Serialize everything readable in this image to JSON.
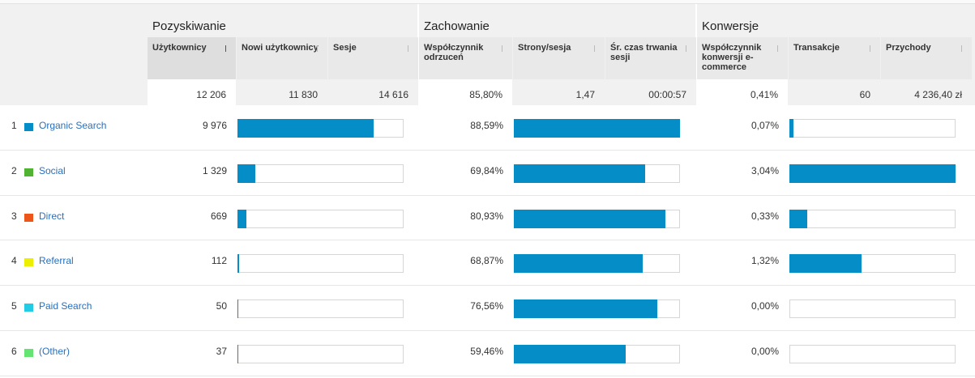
{
  "groups": [
    "Pozyskiwanie",
    "Zachowanie",
    "Konwersje"
  ],
  "columns": [
    "Użytkownicy",
    "Nowi użytkownicy",
    "Sesje",
    "Współczynnik odrzuceń",
    "Strony/sesja",
    "Śr. czas trwania sesji",
    "Współczynnik konwersji e-commerce",
    "Transakcje",
    "Przychody"
  ],
  "totals": [
    {
      "value": 12206,
      "label": "12 206"
    },
    "11 830",
    "14 616",
    "85,80%",
    "1,47",
    "00:00:57",
    "0,41%",
    "60",
    "4 236,40 zł"
  ],
  "rows": [
    {
      "rank": "1",
      "channel": "Organic Search",
      "color": "#058dc7",
      "users": {
        "value": 9976,
        "label": "9 976"
      },
      "bounce_rate": {
        "value": 88.59,
        "label": "88,59%"
      },
      "conversion_rate": {
        "value": 0.07,
        "label": "0,07%"
      }
    },
    {
      "rank": "2",
      "channel": "Social",
      "color": "#50b432",
      "users": {
        "value": 1329,
        "label": "1 329"
      },
      "bounce_rate": {
        "value": 69.84,
        "label": "69,84%"
      },
      "conversion_rate": {
        "value": 3.04,
        "label": "3,04%"
      }
    },
    {
      "rank": "3",
      "channel": "Direct",
      "color": "#ed561b",
      "users": {
        "value": 669,
        "label": "669"
      },
      "bounce_rate": {
        "value": 80.93,
        "label": "80,93%"
      },
      "conversion_rate": {
        "value": 0.33,
        "label": "0,33%"
      }
    },
    {
      "rank": "4",
      "channel": "Referral",
      "color": "#edef00",
      "users": {
        "value": 112,
        "label": "112"
      },
      "bounce_rate": {
        "value": 68.87,
        "label": "68,87%"
      },
      "conversion_rate": {
        "value": 1.32,
        "label": "1,32%"
      }
    },
    {
      "rank": "5",
      "channel": "Paid Search",
      "color": "#24cbe5",
      "users": {
        "value": 50,
        "label": "50"
      },
      "bounce_rate": {
        "value": 76.56,
        "label": "76,56%"
      },
      "conversion_rate": {
        "value": 0,
        "label": "0,00%"
      }
    },
    {
      "rank": "6",
      "channel": "(Other)",
      "color": "#64e572",
      "users": {
        "value": 37,
        "label": "37"
      },
      "bounce_rate": {
        "value": 59.46,
        "label": "59,46%"
      },
      "conversion_rate": {
        "value": 0,
        "label": "0,00%"
      }
    }
  ]
}
